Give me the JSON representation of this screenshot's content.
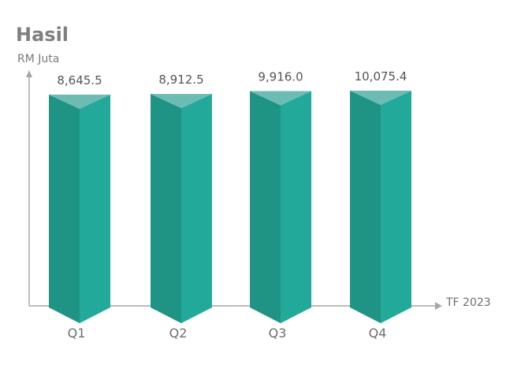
{
  "chart_data": {
    "type": "bar",
    "title": "Hasil",
    "ylabel": "RM Juta",
    "xlabel": "TF 2023",
    "categories": [
      "Q1",
      "Q2",
      "Q3",
      "Q4"
    ],
    "values": [
      8645.5,
      8912.5,
      9916.0,
      10075.4
    ],
    "value_labels": [
      "8,645.5",
      "8,912.5",
      "9,916.0",
      "10,075.4"
    ],
    "colors": {
      "bar_left": "#1f9485",
      "bar_right": "#22a99a",
      "bar_top": "#6dbcb3",
      "axis": "#a6a6a6"
    },
    "grid": false,
    "legend": "none"
  }
}
